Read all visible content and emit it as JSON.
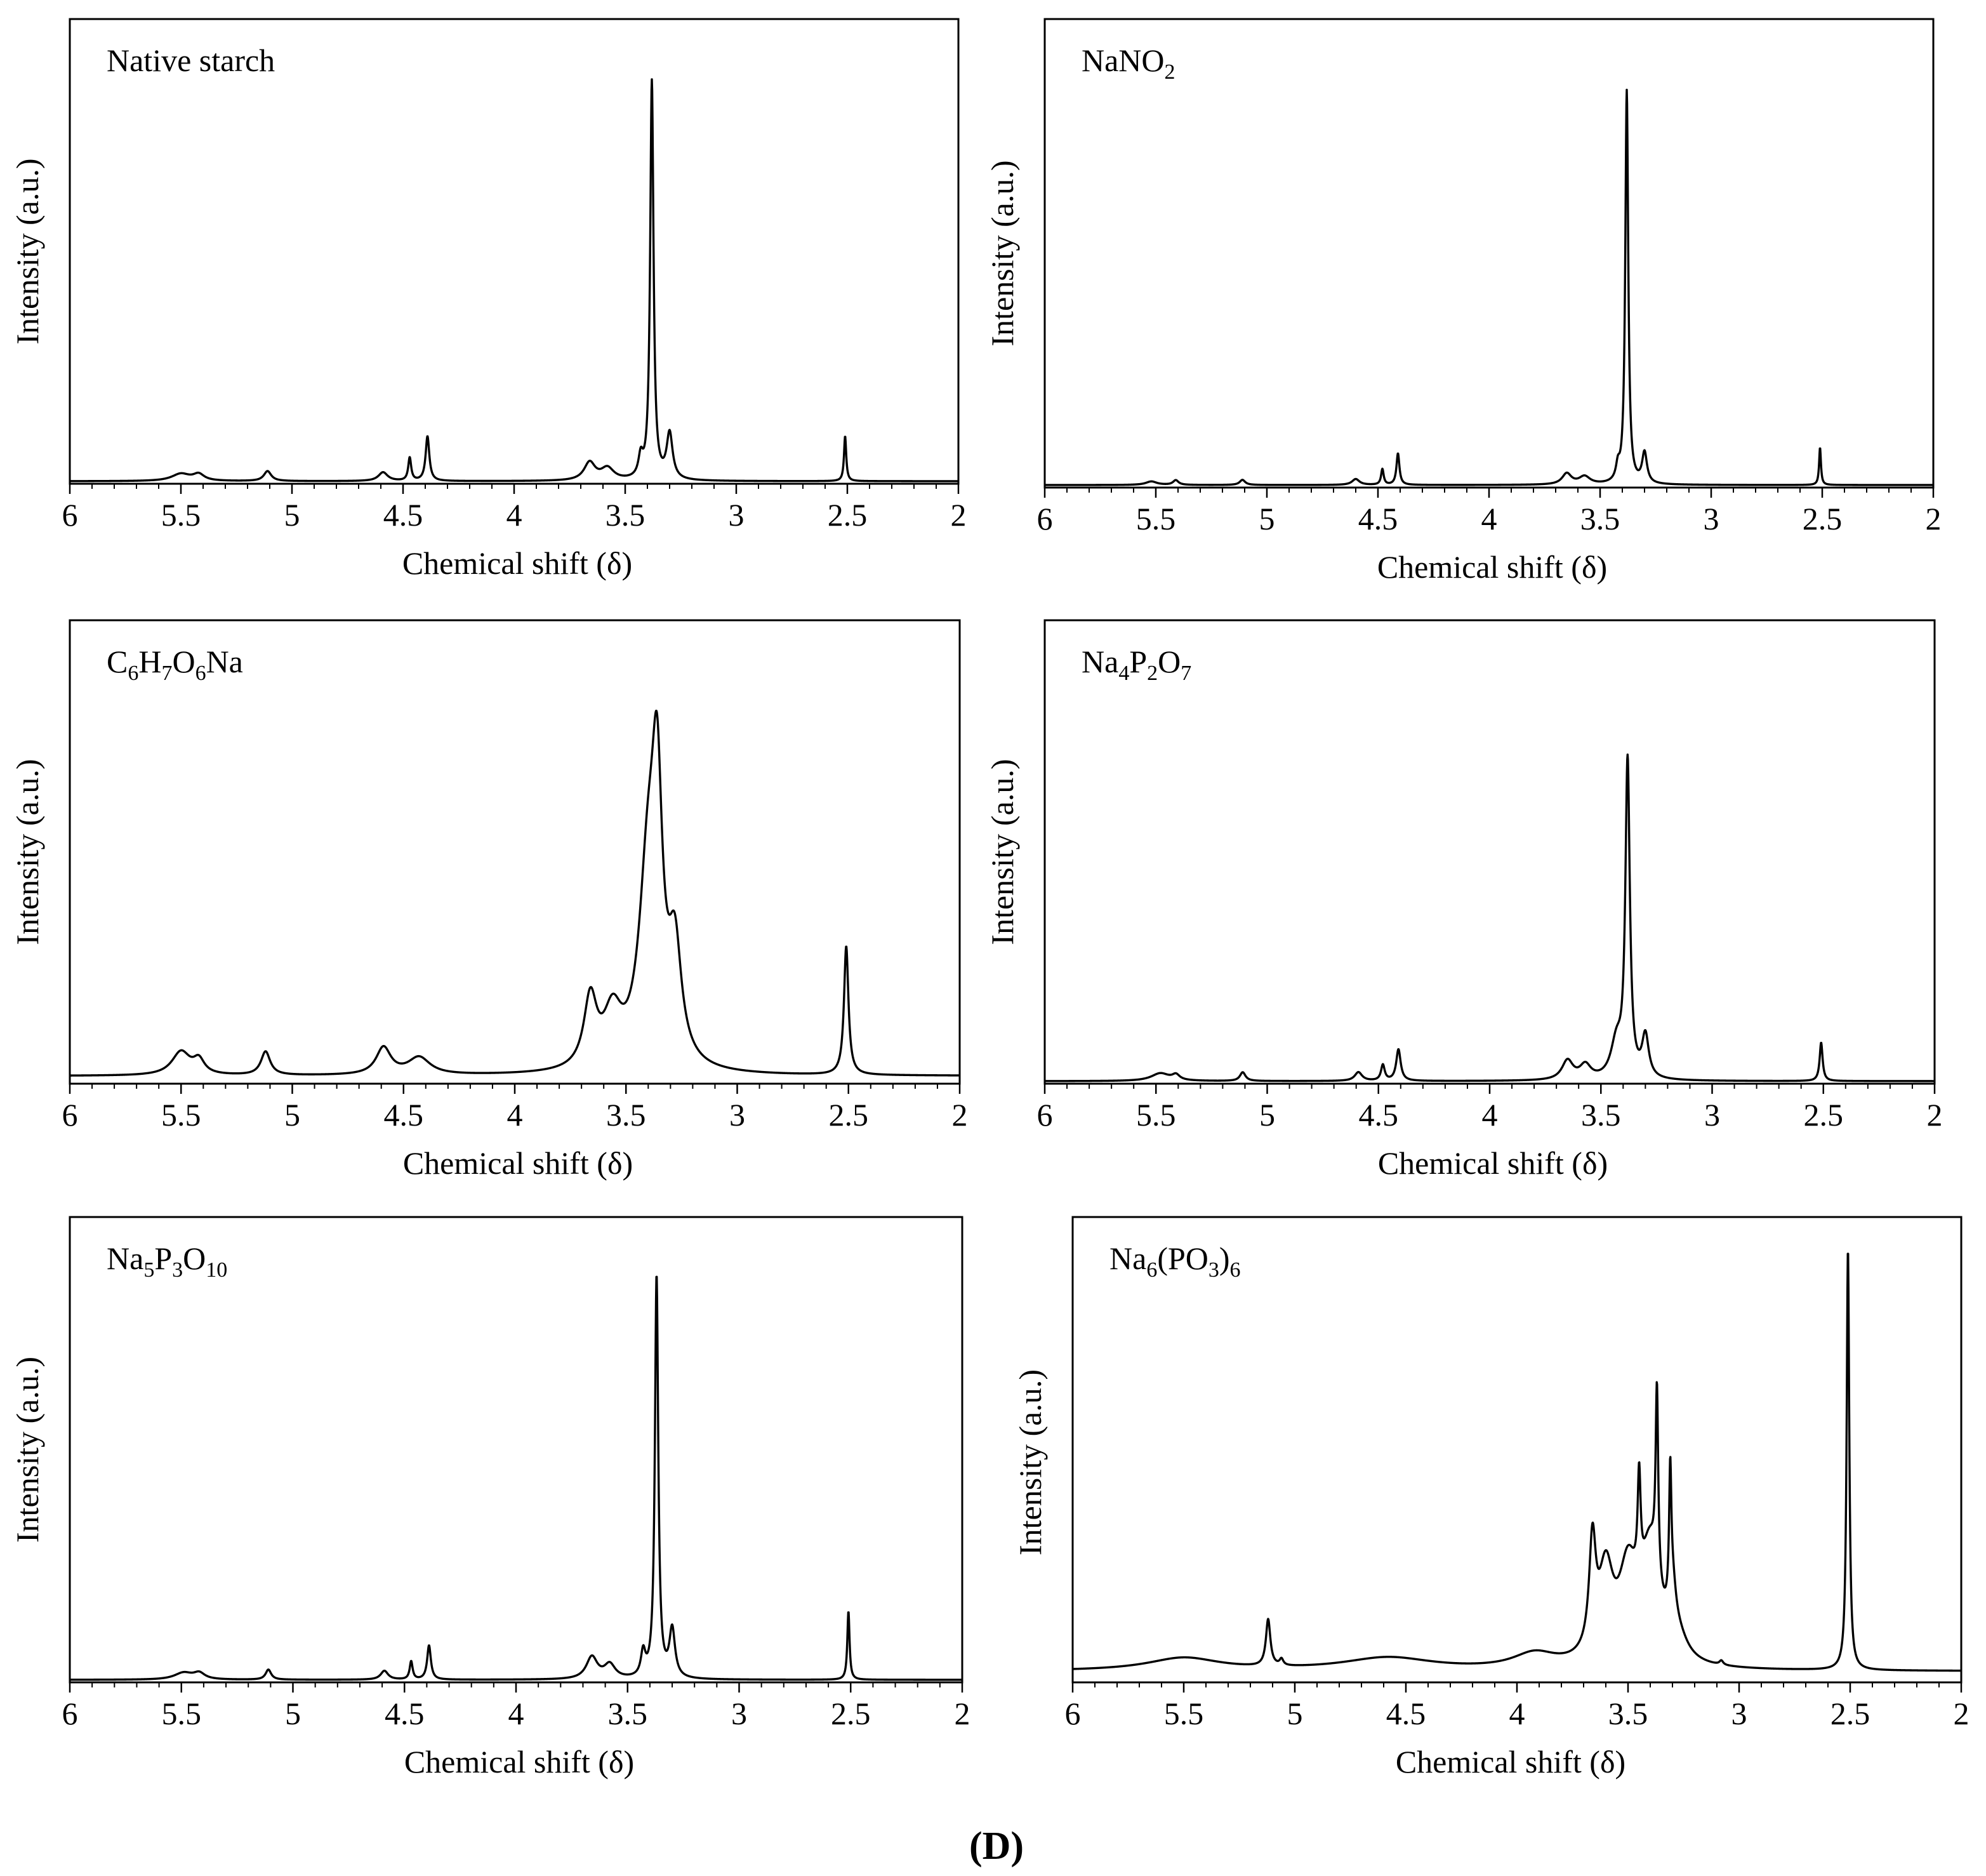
{
  "figure_label": "(D)",
  "chart_data": [
    {
      "type": "line",
      "title": "Native starch",
      "title_parts": [
        {
          "t": "Native starch",
          "sub": false
        }
      ],
      "xlabel": "Chemical shift (δ)",
      "ylabel": "Intensity (a.u.)",
      "xlim": [
        6,
        2
      ],
      "x_ticks": [
        "6",
        "5.5",
        "5",
        "4.5",
        "4",
        "3.5",
        "3",
        "2.5",
        "2"
      ],
      "ylim": [
        0,
        1
      ],
      "baseline": 0,
      "peaks": [
        {
          "x": 5.5,
          "h": 0.018,
          "w": 0.05
        },
        {
          "x": 5.42,
          "h": 0.016,
          "w": 0.03
        },
        {
          "x": 5.11,
          "h": 0.025,
          "w": 0.02
        },
        {
          "x": 4.59,
          "h": 0.022,
          "w": 0.025
        },
        {
          "x": 4.47,
          "h": 0.058,
          "w": 0.008
        },
        {
          "x": 4.39,
          "h": 0.112,
          "w": 0.01
        },
        {
          "x": 3.66,
          "h": 0.045,
          "w": 0.03
        },
        {
          "x": 3.58,
          "h": 0.03,
          "w": 0.035
        },
        {
          "x": 3.43,
          "h": 0.05,
          "w": 0.012
        },
        {
          "x": 3.38,
          "h": 1.0,
          "w": 0.009
        },
        {
          "x": 3.3,
          "h": 0.115,
          "w": 0.016
        },
        {
          "x": 2.51,
          "h": 0.113,
          "w": 0.006
        }
      ]
    },
    {
      "type": "line",
      "title": "NaNO2",
      "title_parts": [
        {
          "t": "NaNO",
          "sub": false
        },
        {
          "t": "2",
          "sub": true
        }
      ],
      "xlabel": "Chemical shift (δ)",
      "ylabel": "Intensity (a.u.)",
      "xlim": [
        6,
        2
      ],
      "x_ticks": [
        "6",
        "5.5",
        "5",
        "4.5",
        "4",
        "3.5",
        "3",
        "2.5",
        "2"
      ],
      "ylim": [
        0,
        1
      ],
      "baseline": 0,
      "peaks": [
        {
          "x": 5.52,
          "h": 0.009,
          "w": 0.03
        },
        {
          "x": 5.41,
          "h": 0.012,
          "w": 0.015
        },
        {
          "x": 5.11,
          "h": 0.013,
          "w": 0.015
        },
        {
          "x": 4.6,
          "h": 0.015,
          "w": 0.02
        },
        {
          "x": 4.48,
          "h": 0.04,
          "w": 0.007
        },
        {
          "x": 4.41,
          "h": 0.08,
          "w": 0.008
        },
        {
          "x": 3.65,
          "h": 0.028,
          "w": 0.025
        },
        {
          "x": 3.57,
          "h": 0.02,
          "w": 0.03
        },
        {
          "x": 3.42,
          "h": 0.035,
          "w": 0.01
        },
        {
          "x": 3.38,
          "h": 1.0,
          "w": 0.008
        },
        {
          "x": 3.3,
          "h": 0.078,
          "w": 0.013
        },
        {
          "x": 2.51,
          "h": 0.095,
          "w": 0.005
        }
      ]
    },
    {
      "type": "line",
      "title": "C6H7O6Na",
      "title_parts": [
        {
          "t": "C",
          "sub": false
        },
        {
          "t": "6",
          "sub": true
        },
        {
          "t": "H",
          "sub": false
        },
        {
          "t": "7",
          "sub": true
        },
        {
          "t": "O",
          "sub": false
        },
        {
          "t": "6",
          "sub": true
        },
        {
          "t": "Na",
          "sub": false
        }
      ],
      "xlabel": "Chemical shift (δ)",
      "ylabel": "Intensity (a.u.)",
      "xlim": [
        6,
        2
      ],
      "x_ticks": [
        "6",
        "5.5",
        "5",
        "4.5",
        "4",
        "3.5",
        "3",
        "2.5",
        "2"
      ],
      "ylim": [
        0,
        1
      ],
      "baseline": 0.012,
      "peaks": [
        {
          "x": 5.5,
          "h": 0.055,
          "w": 0.05
        },
        {
          "x": 5.42,
          "h": 0.032,
          "w": 0.03
        },
        {
          "x": 5.12,
          "h": 0.055,
          "w": 0.025
        },
        {
          "x": 4.59,
          "h": 0.063,
          "w": 0.04
        },
        {
          "x": 4.43,
          "h": 0.04,
          "w": 0.06
        },
        {
          "x": 3.66,
          "h": 0.16,
          "w": 0.035
        },
        {
          "x": 3.56,
          "h": 0.12,
          "w": 0.05
        },
        {
          "x": 3.4,
          "h": 0.45,
          "w": 0.05
        },
        {
          "x": 3.36,
          "h": 0.52,
          "w": 0.028
        },
        {
          "x": 3.28,
          "h": 0.25,
          "w": 0.035
        },
        {
          "x": 2.51,
          "h": 0.3,
          "w": 0.012
        }
      ]
    },
    {
      "type": "line",
      "title": "Na4P2O7",
      "title_parts": [
        {
          "t": "Na",
          "sub": false
        },
        {
          "t": "4",
          "sub": true
        },
        {
          "t": "P",
          "sub": false
        },
        {
          "t": "2",
          "sub": true
        },
        {
          "t": "O",
          "sub": false
        },
        {
          "t": "7",
          "sub": true
        }
      ],
      "xlabel": "Chemical shift (δ)",
      "ylabel": "Intensity (a.u.)",
      "xlim": [
        6,
        2
      ],
      "x_ticks": [
        "6",
        "5.5",
        "5",
        "4.5",
        "4",
        "3.5",
        "3",
        "2.5",
        "2"
      ],
      "ylim": [
        0,
        1
      ],
      "baseline": 0,
      "peaks": [
        {
          "x": 5.48,
          "h": 0.022,
          "w": 0.05
        },
        {
          "x": 5.41,
          "h": 0.015,
          "w": 0.02
        },
        {
          "x": 5.11,
          "h": 0.025,
          "w": 0.015
        },
        {
          "x": 4.59,
          "h": 0.025,
          "w": 0.02
        },
        {
          "x": 4.48,
          "h": 0.045,
          "w": 0.01
        },
        {
          "x": 4.41,
          "h": 0.09,
          "w": 0.012
        },
        {
          "x": 3.65,
          "h": 0.055,
          "w": 0.03
        },
        {
          "x": 3.57,
          "h": 0.04,
          "w": 0.03
        },
        {
          "x": 3.43,
          "h": 0.1,
          "w": 0.03
        },
        {
          "x": 3.38,
          "h": 0.9,
          "w": 0.012
        },
        {
          "x": 3.3,
          "h": 0.12,
          "w": 0.018
        },
        {
          "x": 2.51,
          "h": 0.11,
          "w": 0.008
        }
      ]
    },
    {
      "type": "line",
      "title": "Na5P3O10",
      "title_parts": [
        {
          "t": "Na",
          "sub": false
        },
        {
          "t": "5",
          "sub": true
        },
        {
          "t": "P",
          "sub": false
        },
        {
          "t": "3",
          "sub": true
        },
        {
          "t": "O",
          "sub": false
        },
        {
          "t": "10",
          "sub": true
        }
      ],
      "xlabel": "Chemical shift (δ)",
      "ylabel": "Intensity (a.u.)",
      "xlim": [
        6,
        2
      ],
      "x_ticks": [
        "6",
        "5.5",
        "5",
        "4.5",
        "4",
        "3.5",
        "3",
        "2.5",
        "2"
      ],
      "ylim": [
        0,
        1
      ],
      "baseline": 0,
      "peaks": [
        {
          "x": 5.49,
          "h": 0.017,
          "w": 0.05
        },
        {
          "x": 5.42,
          "h": 0.015,
          "w": 0.03
        },
        {
          "x": 5.11,
          "h": 0.025,
          "w": 0.015
        },
        {
          "x": 4.59,
          "h": 0.022,
          "w": 0.02
        },
        {
          "x": 4.47,
          "h": 0.045,
          "w": 0.008
        },
        {
          "x": 4.39,
          "h": 0.085,
          "w": 0.01
        },
        {
          "x": 3.66,
          "h": 0.055,
          "w": 0.03
        },
        {
          "x": 3.58,
          "h": 0.035,
          "w": 0.03
        },
        {
          "x": 3.43,
          "h": 0.06,
          "w": 0.012
        },
        {
          "x": 3.37,
          "h": 1.0,
          "w": 0.009
        },
        {
          "x": 3.3,
          "h": 0.12,
          "w": 0.015
        },
        {
          "x": 2.51,
          "h": 0.17,
          "w": 0.006
        }
      ]
    },
    {
      "type": "line",
      "title": "Na6(PO3)6",
      "title_parts": [
        {
          "t": "Na",
          "sub": false
        },
        {
          "t": "6",
          "sub": true
        },
        {
          "t": "(PO",
          "sub": false
        },
        {
          "t": "3",
          "sub": true
        },
        {
          "t": ")",
          "sub": false
        },
        {
          "t": "6",
          "sub": true
        }
      ],
      "xlabel": "Chemical shift (δ)",
      "ylabel": "Intensity (a.u.)",
      "xlim": [
        6,
        2
      ],
      "x_ticks": [
        "6",
        "5.5",
        "5",
        "4.5",
        "4",
        "3.5",
        "3",
        "2.5",
        "2"
      ],
      "ylim": [
        0,
        1
      ],
      "baseline": 0.02,
      "peaks": [
        {
          "x": 5.5,
          "h": 0.03,
          "w": 0.2
        },
        {
          "x": 5.12,
          "h": 0.11,
          "w": 0.012
        },
        {
          "x": 5.06,
          "h": 0.015,
          "w": 0.01
        },
        {
          "x": 4.58,
          "h": 0.03,
          "w": 0.25
        },
        {
          "x": 3.92,
          "h": 0.035,
          "w": 0.12
        },
        {
          "x": 3.66,
          "h": 0.25,
          "w": 0.018
        },
        {
          "x": 3.6,
          "h": 0.2,
          "w": 0.04
        },
        {
          "x": 3.5,
          "h": 0.2,
          "w": 0.05
        },
        {
          "x": 3.45,
          "h": 0.24,
          "w": 0.008
        },
        {
          "x": 3.4,
          "h": 0.25,
          "w": 0.05
        },
        {
          "x": 3.37,
          "h": 0.44,
          "w": 0.007
        },
        {
          "x": 3.31,
          "h": 0.3,
          "w": 0.006
        },
        {
          "x": 3.3,
          "h": 0.12,
          "w": 0.02
        },
        {
          "x": 3.27,
          "h": 0.04,
          "w": 0.05
        },
        {
          "x": 3.08,
          "h": 0.01,
          "w": 0.01
        },
        {
          "x": 2.51,
          "h": 0.99,
          "w": 0.007
        }
      ]
    }
  ]
}
